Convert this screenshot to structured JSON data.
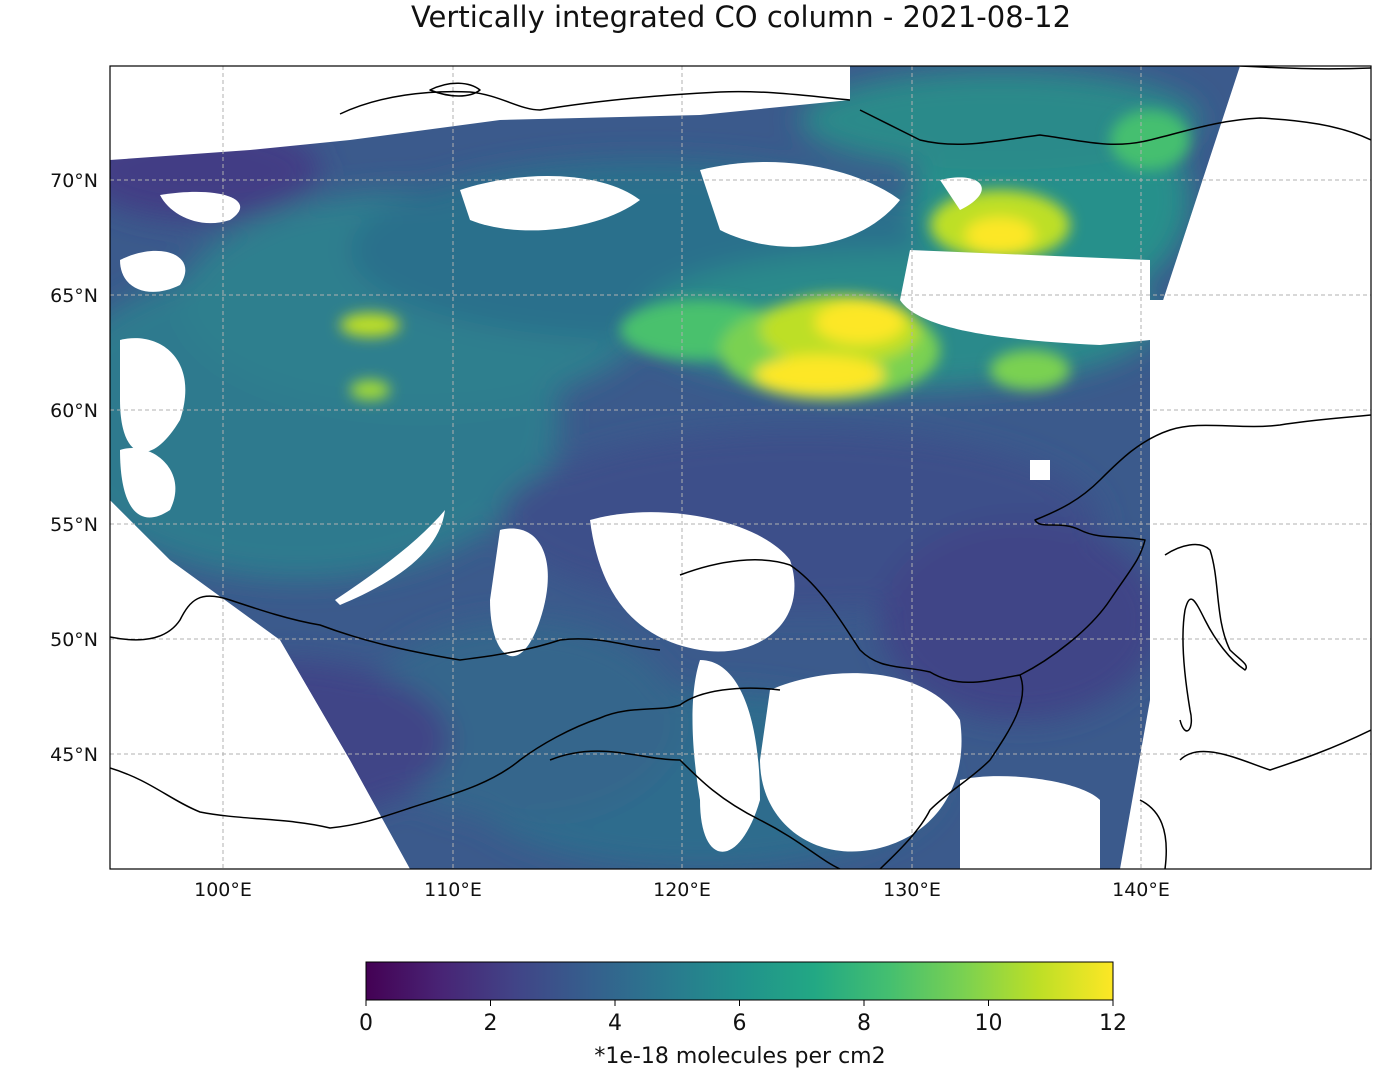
{
  "figure": {
    "title": "Vertically integrated CO column - 2021-08-12",
    "lon_labels": [
      "100°E",
      "110°E",
      "120°E",
      "130°E",
      "140°E"
    ],
    "lat_labels": [
      "70°N",
      "65°N",
      "60°N",
      "55°N",
      "50°N",
      "45°N"
    ]
  },
  "map": {
    "lon_range": [
      95,
      150
    ],
    "lat_range": [
      40,
      75
    ],
    "gridlines": true,
    "projection": "PlateCarree"
  },
  "colorbar": {
    "label": "*1e-18 molecules per cm2",
    "ticks": [
      "0",
      "2",
      "4",
      "6",
      "8",
      "10",
      "12"
    ],
    "range": [
      0,
      12
    ],
    "colormap": "viridis",
    "orientation": "horizontal"
  },
  "colors": {
    "low": "#440154",
    "mid": "#21918c",
    "high": "#fde725",
    "frame": "#000000",
    "grid": "#b0b0b0"
  },
  "chart_data": {
    "type": "heatmap",
    "title": "Vertically integrated CO column - 2021-08-12",
    "xlabel": "",
    "ylabel": "",
    "xlim": [
      95,
      150
    ],
    "ylim": [
      40,
      75
    ],
    "colorbar_range": [
      0,
      12
    ],
    "colorbar_label": "*1e-18 molecules per cm2",
    "hotspots": [
      {
        "lon": 127,
        "lat": 61.5,
        "value": 12
      },
      {
        "lon": 128,
        "lat": 63.5,
        "value": 11.5
      },
      {
        "lon": 134,
        "lat": 67.3,
        "value": 10.5
      },
      {
        "lon": 106,
        "lat": 63.5,
        "value": 9.5
      },
      {
        "lon": 135,
        "lat": 61.5,
        "value": 9.5
      }
    ],
    "grid": true
  }
}
